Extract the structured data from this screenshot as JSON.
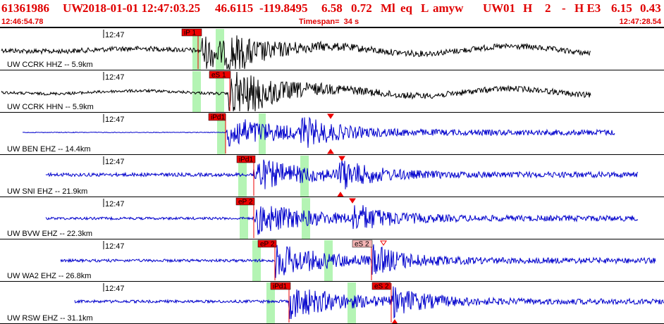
{
  "header": {
    "event_id": "61361986",
    "network": "UW",
    "datetime": "2018-01-01 12:47:03.25",
    "lat": "46.6115",
    "lon": "-119.8495",
    "depth": "6.58",
    "magnitude": "0.72",
    "mag_type": "Ml",
    "event_type": "eq",
    "flag": "L",
    "author": "amyw",
    "origin_net": "UW",
    "code": "01",
    "quality": "H",
    "count": "2",
    "dash": "-",
    "status": "H E3",
    "val1": "6.15",
    "val2": "0.43"
  },
  "subheader": {
    "start_time": "12:46:54.78",
    "timespan": "Timespan=  34 s",
    "end_time": "12:47:28.54"
  },
  "colors": {
    "header": "#e00000",
    "velocity_trace": "#000000",
    "shortperiod_trace": "#0000cc",
    "pick_red": "#ee0000",
    "pick_pink": "#f4b4b4",
    "window_green": "#b4f4b4"
  },
  "channels": [
    {
      "label": "UW CCRK HHZ -- 5.9km",
      "time": "12:47",
      "color": "black",
      "picks": [
        {
          "label": "iP 1",
          "type": "red"
        }
      ]
    },
    {
      "label": "UW CCRK HHN -- 5.9km",
      "time": "12:47",
      "color": "black",
      "picks": [
        {
          "label": "eS 1",
          "type": "red"
        }
      ]
    },
    {
      "label": "UW BEN EHZ -- 14.4km",
      "time": "12:47",
      "color": "blue",
      "picks": [
        {
          "label": "iPd1",
          "type": "red"
        }
      ]
    },
    {
      "label": "UW SNI EHZ -- 21.9km",
      "time": "12:47",
      "color": "blue",
      "picks": [
        {
          "label": "iPd1",
          "type": "red"
        }
      ]
    },
    {
      "label": "UW BVW EHZ -- 22.3km",
      "time": "12:47",
      "color": "blue",
      "picks": [
        {
          "label": "eP 2",
          "type": "red"
        }
      ]
    },
    {
      "label": "UW WA2 EHZ -- 26.8km",
      "time": "12:47",
      "color": "blue",
      "picks": [
        {
          "label": "eP 2",
          "type": "red"
        },
        {
          "label": "eS 2",
          "type": "pink"
        }
      ]
    },
    {
      "label": "UW RSW EHZ -- 31.1km",
      "time": "12:47",
      "color": "blue",
      "picks": [
        {
          "label": "iPd1",
          "type": "red"
        },
        {
          "label": "eS 2",
          "type": "red"
        }
      ]
    }
  ]
}
